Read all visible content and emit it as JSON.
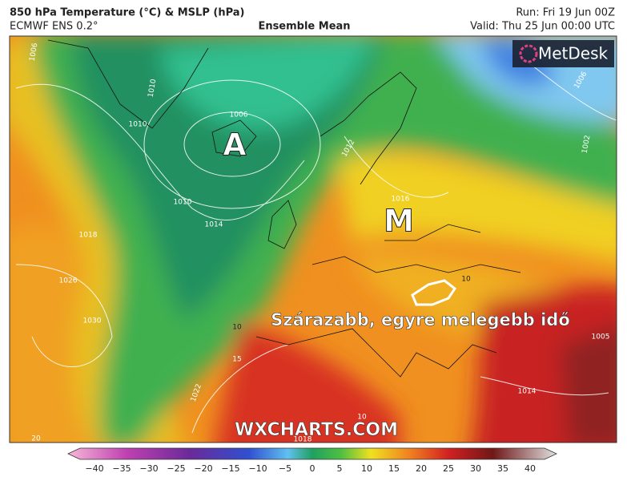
{
  "header": {
    "title": "850 hPa Temperature (°C) & MSLP (hPa)",
    "model": "ECMWF ENS 0.2°",
    "product": "Ensemble Mean",
    "run": "Run: Fri 19 Jun 00Z",
    "valid": "Valid: Thu 25 Jun 00:00 UTC"
  },
  "logo": "MetDesk",
  "map": {
    "low_label": "A",
    "high_label": "M",
    "annotation": "Szárazabb, egyre melegebb idő",
    "watermark": "WXCHARTS.COM",
    "isobar_labels": [
      "1006",
      "1010",
      "1010",
      "1006",
      "1010",
      "1014",
      "1018",
      "1026",
      "1030",
      "1022",
      "1018",
      "1014",
      "1005",
      "1002",
      "1006",
      "1012",
      "1016"
    ],
    "temperature_labels": [
      "10",
      "15",
      "10",
      "20",
      "10"
    ]
  },
  "colorbar": {
    "ticks": [
      "−40",
      "−35",
      "−30",
      "−25",
      "−20",
      "−15",
      "−10",
      "−5",
      "0",
      "5",
      "10",
      "15",
      "20",
      "25",
      "30",
      "35",
      "40"
    ]
  }
}
